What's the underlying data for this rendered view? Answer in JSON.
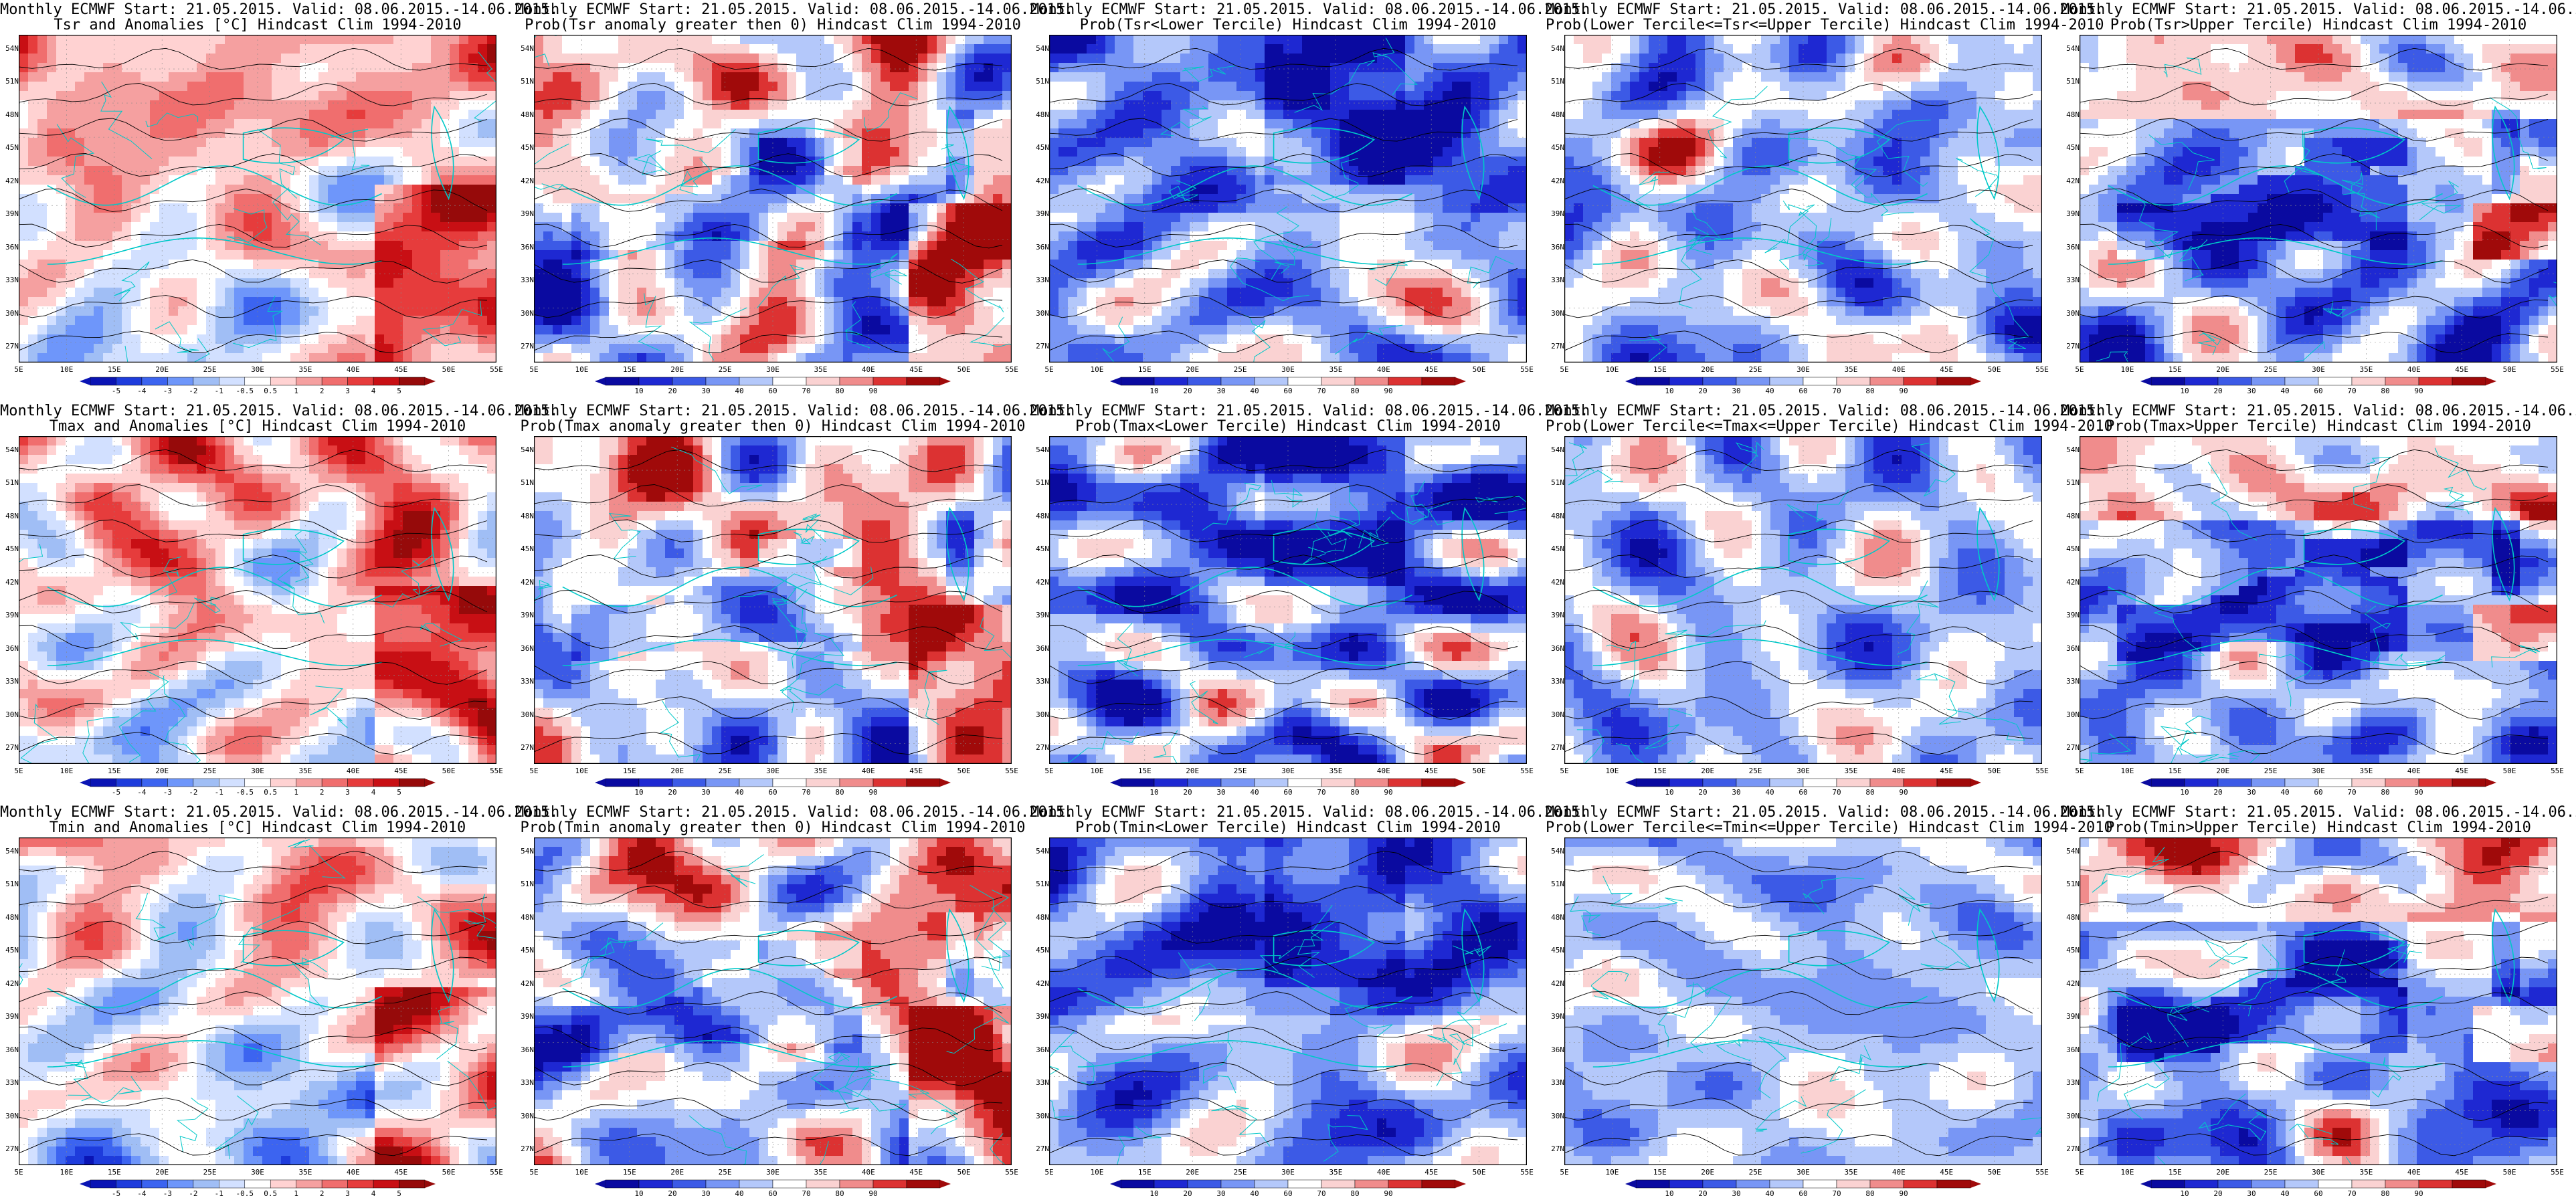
{
  "header_line": "Monthly ECMWF Start: 21.05.2015. Valid: 08.06.2015.-14.06.2015.",
  "rows": [
    {
      "var": "Tsr",
      "titles": [
        "Tsr and Anomalies [°C] Hindcast Clim 1994-2010",
        "Prob(Tsr anomaly greater then 0) Hindcast Clim 1994-2010",
        "Prob(Tsr<Lower Tercile) Hindcast Clim 1994-2010",
        "Prob(Lower Tercile<=Tsr<=Upper Tercile) Hindcast Clim 1994-2010",
        "Prob(Tsr>Upper Tercile) Hindcast Clim 1994-2010"
      ]
    },
    {
      "var": "Tmax",
      "titles": [
        "Tmax and Anomalies [°C] Hindcast Clim 1994-2010",
        "Prob(Tmax anomaly greater then 0) Hindcast Clim 1994-2010",
        "Prob(Tmax<Lower Tercile) Hindcast Clim 1994-2010",
        "Prob(Lower Tercile<=Tmax<=Upper Tercile) Hindcast Clim 1994-2010",
        "Prob(Tmax>Upper Tercile) Hindcast Clim 1994-2010"
      ]
    },
    {
      "var": "Tmin",
      "titles": [
        "Tmin and Anomalies [°C] Hindcast Clim 1994-2010",
        "Prob(Tmin anomaly greater then 0) Hindcast Clim 1994-2010",
        "Prob(Tmin<Lower Tercile) Hindcast Clim 1994-2010",
        "Prob(Lower Tercile<=Tmin<=Upper Tercile) Hindcast Clim 1994-2010",
        "Prob(Tmin>Upper Tercile) Hindcast Clim 1994-2010"
      ]
    }
  ],
  "lat_labels": [
    "54N",
    "51N",
    "48N",
    "45N",
    "42N",
    "39N",
    "36N",
    "33N",
    "30N",
    "27N"
  ],
  "lon_labels": [
    "5E",
    "10E",
    "15E",
    "20E",
    "25E",
    "30E",
    "35E",
    "40E",
    "45E",
    "50E",
    "55E"
  ],
  "anomaly_scale": [
    "-5",
    "-4",
    "-3",
    "-2",
    "-1",
    "-0.5",
    "0.5",
    "1",
    "2",
    "3",
    "4",
    "5"
  ],
  "prob_scale": [
    "10",
    "20",
    "30",
    "40",
    "60",
    "70",
    "80",
    "90"
  ],
  "colors": {
    "coast": "#00c8c8",
    "contour": "#000000",
    "warm": "#e8141a",
    "cold": "#1a1ad8",
    "neutral": "#ffffff"
  }
}
